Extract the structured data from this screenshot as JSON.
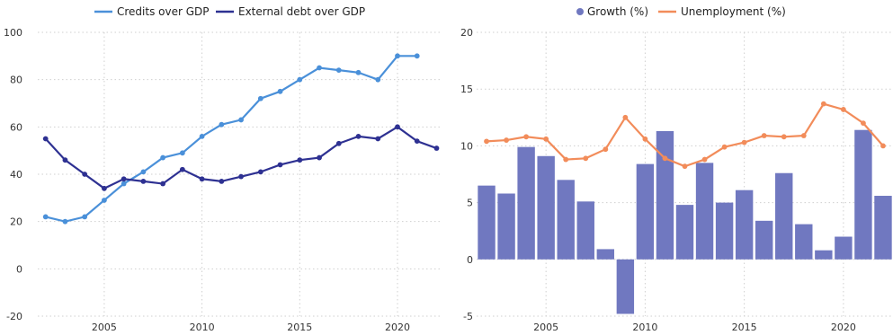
{
  "chart_data": [
    {
      "type": "line",
      "title": "",
      "xlabel": "",
      "ylabel": "",
      "legend_position": "top-center",
      "grid": true,
      "ylim": [
        -20,
        100
      ],
      "yticks": [
        "-20",
        "0",
        "20",
        "40",
        "60",
        "80",
        "100"
      ],
      "xlim": [
        2001.6,
        2022.3
      ],
      "xticks": [
        "2005",
        "2010",
        "2015",
        "2020"
      ],
      "x": [
        2002,
        2003,
        2004,
        2005,
        2006,
        2007,
        2008,
        2009,
        2010,
        2011,
        2012,
        2013,
        2014,
        2015,
        2016,
        2017,
        2018,
        2019,
        2020,
        2021,
        2022
      ],
      "series": [
        {
          "name": "Credits over GDP",
          "color": "#4a90d9",
          "values": [
            22,
            20,
            22,
            29,
            36,
            41,
            47,
            49,
            56,
            61,
            63,
            72,
            75,
            80,
            85,
            84,
            83,
            80,
            90,
            90,
            null
          ]
        },
        {
          "name": "External debt over GDP",
          "color": "#2e3192",
          "values": [
            55,
            46,
            40,
            34,
            38,
            37,
            36,
            42,
            38,
            37,
            39,
            41,
            44,
            46,
            47,
            53,
            56,
            55,
            60,
            54,
            51
          ]
        }
      ]
    },
    {
      "type": "bar+line",
      "title": "",
      "xlabel": "",
      "ylabel": "",
      "legend_position": "top-center",
      "grid": true,
      "ylim": [
        -5,
        20
      ],
      "yticks": [
        "-5",
        "0",
        "5",
        "10",
        "15",
        "20"
      ],
      "xlim": [
        2001.5,
        2022.5
      ],
      "xticks": [
        "2005",
        "2010",
        "2015",
        "2020"
      ],
      "x": [
        2002,
        2003,
        2004,
        2005,
        2006,
        2007,
        2008,
        2009,
        2010,
        2011,
        2012,
        2013,
        2014,
        2015,
        2016,
        2017,
        2018,
        2019,
        2020,
        2021,
        2022
      ],
      "series": [
        {
          "name": "Growth (%)",
          "kind": "bar",
          "color": "#7078c0",
          "values": [
            6.5,
            5.8,
            9.9,
            9.1,
            7.0,
            5.1,
            0.9,
            -4.8,
            8.4,
            11.3,
            4.8,
            8.5,
            5.0,
            6.1,
            3.4,
            7.6,
            3.1,
            0.8,
            2.0,
            11.4,
            5.6
          ]
        },
        {
          "name": "Unemployment (%)",
          "kind": "line",
          "color": "#f28c5a",
          "values": [
            10.4,
            10.5,
            10.8,
            10.6,
            8.8,
            8.9,
            9.7,
            12.5,
            10.6,
            8.9,
            8.2,
            8.8,
            9.9,
            10.3,
            10.9,
            10.8,
            10.9,
            13.7,
            13.2,
            12.0,
            10.0
          ]
        }
      ]
    }
  ]
}
